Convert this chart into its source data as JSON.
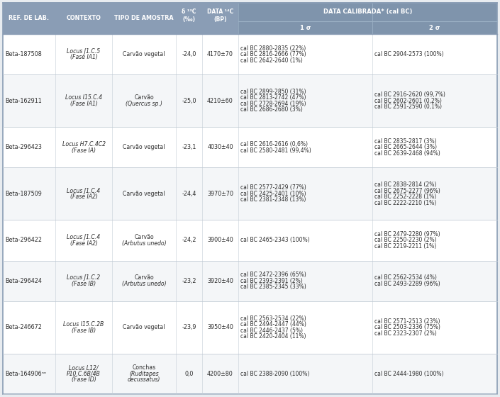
{
  "rows": [
    {
      "ref": "Beta-187508",
      "contexto_line1": "Locus J1.C.5",
      "contexto_line2": "(Fase IA1)",
      "contexto_line3": "",
      "tipo_line1": "Carvão vegetal",
      "tipo_line2": "",
      "tipo_line3": "",
      "tipo_italic": [
        false,
        false,
        false
      ],
      "delta": "-24,0",
      "data": "4170±70",
      "sigma1": "cal BC 2880-2835 (22%)\ncal BC 2816-2666 (77%)\ncal BC 2642-2640 (1%)",
      "sigma2": "cal BC 2904-2573 (100%)"
    },
    {
      "ref": "Beta-162911",
      "contexto_line1": "Locus I15.C.4",
      "contexto_line2": "(Fase IA1)",
      "contexto_line3": "",
      "tipo_line1": "Carvão",
      "tipo_line2": "(Quercus sp.)",
      "tipo_line3": "",
      "tipo_italic": [
        false,
        true,
        false
      ],
      "delta": "-25,0",
      "data": "4210±60",
      "sigma1": "cal BC 2899-2850 (31%)\ncal BC 2813-2742 (47%)\ncal BC 2728-2694 (19%)\ncal BC 2686-2680 (3%)",
      "sigma2": "cal BC 2916-2620 (99,7%)\ncal BC 2602-2601 (0,2%)\ncal BC 2591-2590 (0,1%)"
    },
    {
      "ref": "Beta-296423",
      "contexto_line1": "Locus H7.C.4C2",
      "contexto_line2": "(Fase IA)",
      "contexto_line3": "",
      "tipo_line1": "Carvão vegetal",
      "tipo_line2": "",
      "tipo_line3": "",
      "tipo_italic": [
        false,
        false,
        false
      ],
      "delta": "-23,1",
      "data": "4030±40",
      "sigma1": "cal BC 2616-2616 (0,6%)\ncal BC 2580-2481 (99,4%)",
      "sigma2": "cal BC 2835-2817 (3%)\ncal BC 2665-2644 (3%)\ncal BC 2639-2468 (94%)"
    },
    {
      "ref": "Beta-187509",
      "contexto_line1": "Locus J1.C.4",
      "contexto_line2": "(Fase IA2)",
      "contexto_line3": "",
      "tipo_line1": "Carvão vegetal",
      "tipo_line2": "",
      "tipo_line3": "",
      "tipo_italic": [
        false,
        false,
        false
      ],
      "delta": "-24,4",
      "data": "3970±70",
      "sigma1": "cal BC 2577-2429 (77%)\ncal BC 2425-2401 (10%)\ncal BC 2381-2348 (13%)",
      "sigma2": "cal BC 2838-2814 (2%)\ncal BC 2675-2277 (96%)\ncal BC 2252-2228 (1%)\ncal BC 2222-2210 (1%)"
    },
    {
      "ref": "Beta-296422",
      "contexto_line1": "Locus J1.C.4",
      "contexto_line2": "(Fase IA2)",
      "contexto_line3": "",
      "tipo_line1": "Carvão",
      "tipo_line2": "(Arbutus unedo)",
      "tipo_line3": "",
      "tipo_italic": [
        false,
        true,
        false
      ],
      "delta": "-24,2",
      "data": "3900±40",
      "sigma1": "cal BC 2465-2343 (100%)",
      "sigma2": "cal BC 2479-2280 (97%)\ncal BC 2250-2230 (2%)\ncal BC 2219-2211 (1%)"
    },
    {
      "ref": "Beta-296424",
      "contexto_line1": "Locus J1.C.2",
      "contexto_line2": "(Fase IB)",
      "contexto_line3": "",
      "tipo_line1": "Carvão",
      "tipo_line2": "(Arbutus unedo)",
      "tipo_line3": "",
      "tipo_italic": [
        false,
        true,
        false
      ],
      "delta": "-23,2",
      "data": "3920±40",
      "sigma1": "cal BC 2472-2396 (65%)\ncal BC 2393-2391 (2%)\ncal BC 2385-2345 (33%)",
      "sigma2": "cal BC 2562-2534 (4%)\ncal BC 2493-2289 (96%)"
    },
    {
      "ref": "Beta-246672",
      "contexto_line1": "Locus I15.C.2B",
      "contexto_line2": "(Fase IB)",
      "contexto_line3": "",
      "tipo_line1": "Carvão vegetal",
      "tipo_line2": "",
      "tipo_line3": "",
      "tipo_italic": [
        false,
        false,
        false
      ],
      "delta": "-23,9",
      "data": "3950±40",
      "sigma1": "cal BC 2563-2534 (22%)\ncal BC 2494-2447 (44%)\ncal BC 2446-2437 (5%)\ncal BC 2420-2404 (11%)",
      "sigma2": "cal BC 2571-2513 (23%)\ncal BC 2503-2336 (75%)\ncal BC 2323-2307 (2%)"
    },
    {
      "ref": "Beta-164906ⁿⁿ",
      "contexto_line1": "Locus L12/",
      "contexto_line2": "P10.C.6B/4B",
      "contexto_line3": "(Fase ID)",
      "tipo_line1": "Conchas",
      "tipo_line2": "(Ruditapes",
      "tipo_line3": "decussatus)",
      "tipo_italic": [
        false,
        true,
        true
      ],
      "delta": "0,0",
      "data": "4200±80",
      "sigma1": "cal BC 2388-2090 (100%)",
      "sigma2": "cal BC 2444-1980 (100%)"
    }
  ],
  "header_bg": "#8a9db5",
  "subheader_line_color": "#a0b4c8",
  "row_bg_odd": "#ffffff",
  "row_bg_even": "#f4f6f8",
  "text_dark": "#2d2d2d",
  "text_white": "#ffffff",
  "border_color": "#b0bec8",
  "fig_bg": "#e8ecf0",
  "fig_width": 7.05,
  "fig_height": 5.6
}
